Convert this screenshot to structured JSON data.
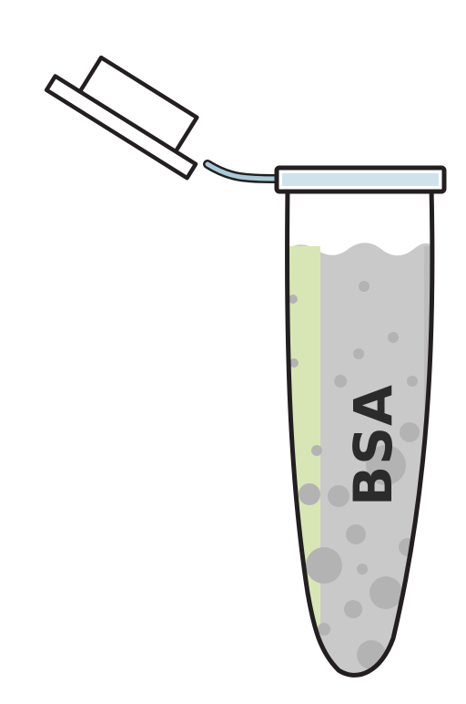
{
  "tube": {
    "label": "BSA"
  },
  "colors": {
    "outline": "#231f20",
    "liquid": "#c9c9c9",
    "liquid_edge": "#d8e6b5",
    "bubble": "#b3b3b3",
    "rim": "#cfe3ec",
    "hinge": "#a9cbd8",
    "background": "#ffffff"
  },
  "icons": {
    "cap": "tube-cap-icon",
    "tube": "microcentrifuge-tube-icon"
  }
}
